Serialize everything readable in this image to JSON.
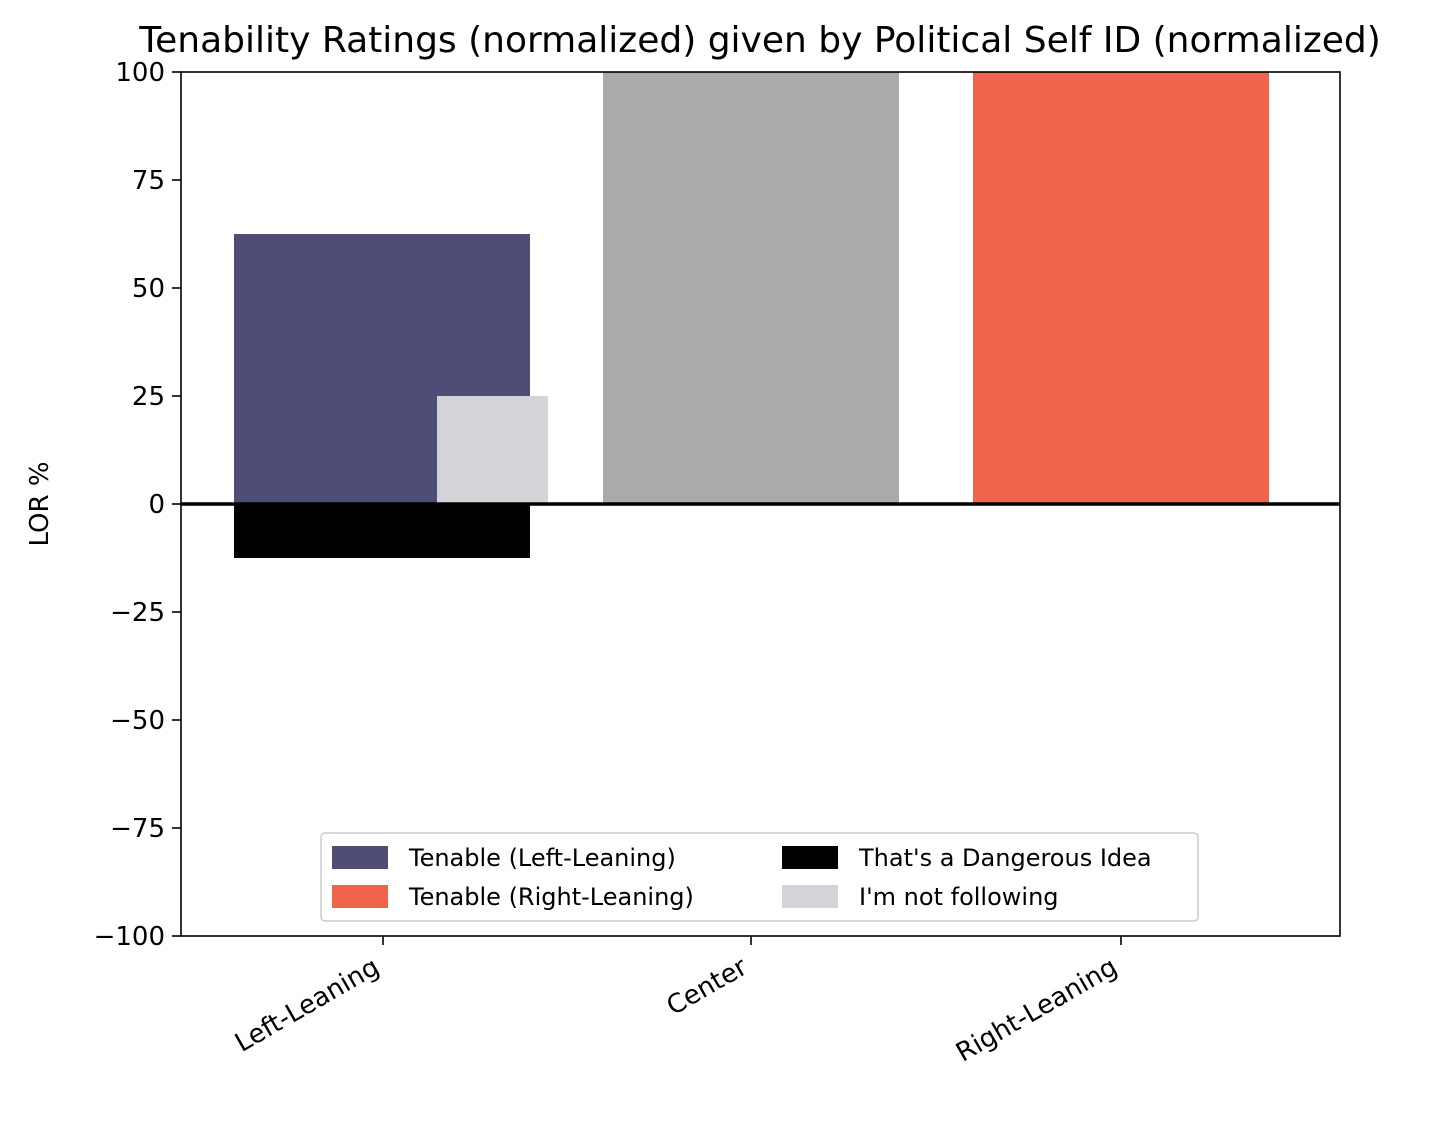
{
  "chart_data": {
    "type": "bar",
    "title": "Tenability Ratings (normalized) given by Political Self ID (normalized)",
    "xlabel": "",
    "ylabel": "LOR %",
    "ylim": [
      -100,
      100
    ],
    "yticks": [
      100,
      75,
      50,
      25,
      0,
      -25,
      -50,
      -75,
      -100
    ],
    "ytick_labels": [
      "100",
      "75",
      "50",
      "25",
      "0",
      "−25",
      "−50",
      "−75",
      "−100"
    ],
    "categories": [
      "Left-Leaning",
      "Center",
      "Right-Leaning"
    ],
    "grid": false,
    "legend_position": "lower-center",
    "series": [
      {
        "name": "Tenable (Left-Leaning)",
        "color": "#4d4d75",
        "values": [
          62.5,
          null,
          null
        ]
      },
      {
        "name": "Tenable (Right-Leaning)",
        "color": "#f0644c",
        "values": [
          null,
          null,
          100
        ]
      },
      {
        "name": "That's a Dangerous Idea",
        "color": "#000000",
        "values": [
          -12.5,
          null,
          null
        ]
      },
      {
        "name": "I'm not following",
        "color": "#d3d3d8",
        "values": [
          25,
          null,
          null
        ]
      },
      {
        "name": "Center (unlabeled)",
        "color": "#aaaaaa",
        "values": [
          null,
          100,
          null
        ],
        "in_legend": false
      }
    ]
  }
}
